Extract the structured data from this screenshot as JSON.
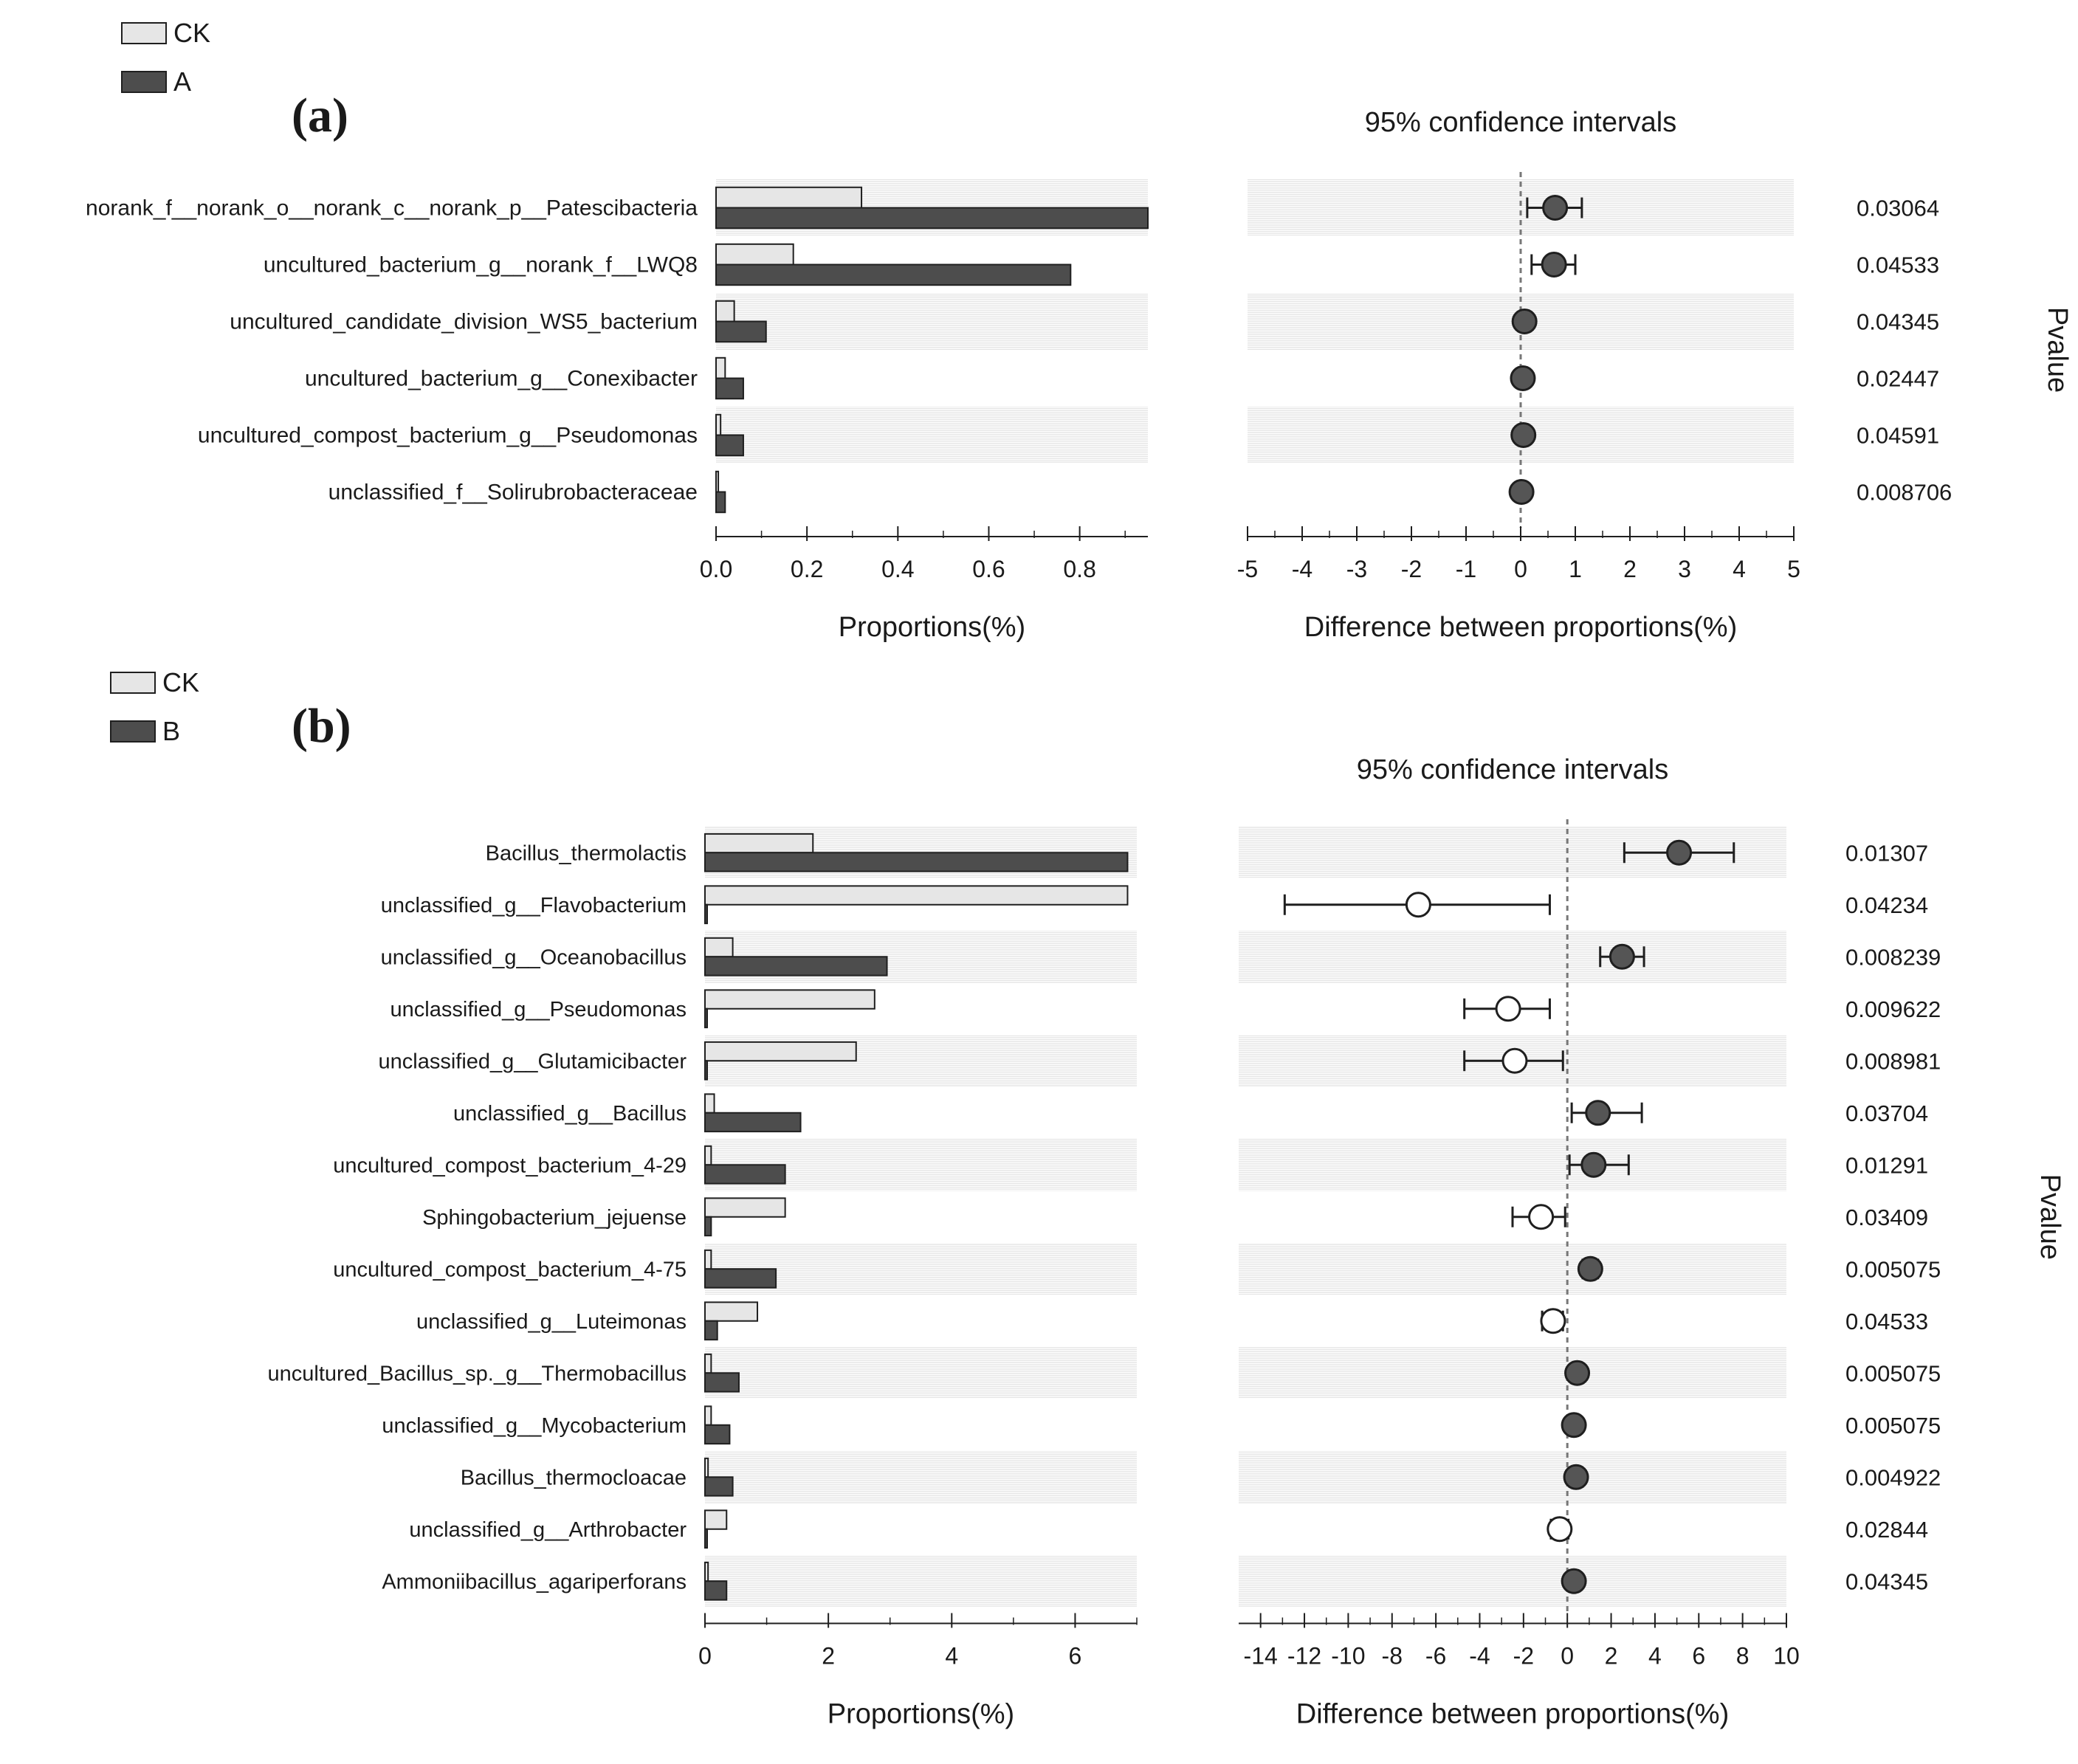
{
  "chart_data": [
    {
      "panel_label": "(a)",
      "type": "bar",
      "legend": [
        {
          "name": "CK",
          "color": "#e6e6e6"
        },
        {
          "name": "A",
          "color": "#4d4d4d"
        }
      ],
      "categories": [
        "norank_f__norank_o__norank_c__norank_p__Patescibacteria",
        "uncultured_bacterium_g__norank_f__LWQ8",
        "uncultured_candidate_division_WS5_bacterium",
        "uncultured_bacterium_g__Conexibacter",
        "uncultured_compost_bacterium_g__Pseudomonas",
        "unclassified_f__Solirubrobacteraceae"
      ],
      "series": [
        {
          "name": "CK",
          "values": [
            0.32,
            0.17,
            0.04,
            0.02,
            0.01,
            0.005
          ]
        },
        {
          "name": "A",
          "values": [
            0.95,
            0.78,
            0.11,
            0.06,
            0.06,
            0.02
          ]
        }
      ],
      "xlabel": "Proportions(%)",
      "xlim": [
        0,
        0.95
      ],
      "xticks": [
        0.0,
        0.2,
        0.4,
        0.6,
        0.8
      ],
      "xtick_labels": [
        "0.0",
        "0.2",
        "0.4",
        "0.6",
        "0.8"
      ],
      "ci": {
        "title": "95% confidence intervals",
        "xlabel": "Difference between proportions(%)",
        "xlim": [
          -5,
          5
        ],
        "xticks": [
          -5,
          -4,
          -3,
          -2,
          -1,
          0,
          1,
          2,
          3,
          4,
          5
        ],
        "xtick_labels": [
          "-5",
          "-4",
          "-3",
          "-2",
          "-1",
          "0",
          "1",
          "2",
          "3",
          "4",
          "5"
        ],
        "diff": [
          0.63,
          0.61,
          0.07,
          0.04,
          0.05,
          0.015
        ],
        "lower": [
          0.12,
          0.2,
          0.0,
          0.0,
          0.0,
          0.0
        ],
        "upper": [
          1.12,
          1.0,
          0.14,
          0.09,
          0.1,
          0.03
        ]
      },
      "pvalue_label": "Pvalue",
      "pvalues": [
        "0.03064",
        "0.04533",
        "0.04345",
        "0.02447",
        "0.04591",
        "0.008706"
      ]
    },
    {
      "panel_label": "(b)",
      "type": "bar",
      "legend": [
        {
          "name": "CK",
          "color": "#e6e6e6"
        },
        {
          "name": "B",
          "color": "#4d4d4d"
        }
      ],
      "categories": [
        "Bacillus_thermolactis",
        "unclassified_g__Flavobacterium",
        "unclassified_g__Oceanobacillus",
        "unclassified_g__Pseudomonas",
        "unclassified_g__Glutamicibacter",
        "unclassified_g__Bacillus",
        "uncultured_compost_bacterium_4-29",
        "Sphingobacterium_jejuense",
        "uncultured_compost_bacterium_4-75",
        "unclassified_g__Luteimonas",
        "uncultured_Bacillus_sp._g__Thermobacillus",
        "unclassified_g__Mycobacterium",
        "Bacillus_thermocloacae",
        "unclassified_g__Arthrobacter",
        "Ammoniibacillus_agariperforans"
      ],
      "series": [
        {
          "name": "CK",
          "values": [
            1.75,
            6.85,
            0.45,
            2.75,
            2.45,
            0.15,
            0.1,
            1.3,
            0.1,
            0.85,
            0.1,
            0.1,
            0.05,
            0.35,
            0.05
          ]
        },
        {
          "name": "B",
          "values": [
            6.85,
            0.02,
            2.95,
            0.02,
            0.02,
            1.55,
            1.3,
            0.1,
            1.15,
            0.2,
            0.55,
            0.4,
            0.45,
            0.02,
            0.35
          ]
        }
      ],
      "xlabel": "Proportions(%)",
      "xlim": [
        0,
        7
      ],
      "xticks": [
        0,
        2,
        4,
        6
      ],
      "xtick_labels": [
        "0",
        "2",
        "4",
        "6"
      ],
      "ci": {
        "title": "95% confidence intervals",
        "xlabel": "Difference between proportions(%)",
        "xlim": [
          -15,
          10
        ],
        "xticks": [
          -14,
          -12,
          -10,
          -8,
          -6,
          -4,
          -2,
          0,
          2,
          4,
          6,
          8,
          10
        ],
        "xtick_labels": [
          "-14",
          "-12",
          "-10",
          "-8",
          "-6",
          "-4",
          "-2",
          "0",
          "2",
          "4",
          "6",
          "8",
          "10"
        ],
        "diff": [
          5.1,
          -6.8,
          2.5,
          -2.7,
          -2.4,
          1.4,
          1.2,
          -1.2,
          1.05,
          -0.65,
          0.45,
          0.3,
          0.4,
          -0.35,
          0.3
        ],
        "lower": [
          2.6,
          -12.9,
          1.5,
          -4.7,
          -4.7,
          0.2,
          0.1,
          -2.5,
          0.7,
          -1.15,
          0.15,
          0.05,
          0.1,
          -0.75,
          0.05
        ],
        "upper": [
          7.6,
          -0.8,
          3.5,
          -0.8,
          -0.2,
          3.4,
          2.8,
          -0.1,
          1.4,
          -0.2,
          0.75,
          0.6,
          0.7,
          0.05,
          0.6
        ]
      },
      "pvalue_label": "Pvalue",
      "pvalues": [
        "0.01307",
        "0.04234",
        "0.008239",
        "0.009622",
        "0.008981",
        "0.03704",
        "0.01291",
        "0.03409",
        "0.005075",
        "0.04533",
        "0.005075",
        "0.005075",
        "0.004922",
        "0.02844",
        "0.04345"
      ]
    }
  ]
}
